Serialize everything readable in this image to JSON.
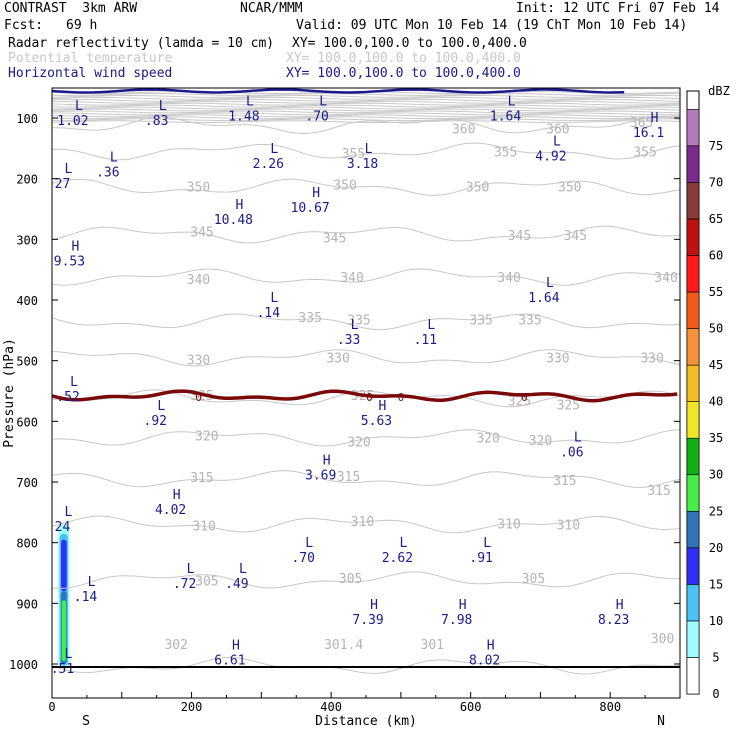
{
  "header": {
    "model": "CONTRAST  3km ARW",
    "source": "NCAR/MMM",
    "init": "Init: 12 UTC Fri 07 Feb 14",
    "fcst_label": "Fcst:",
    "fcst_value": "69 h",
    "valid": "Valid: 09 UTC Mon 10 Feb 14 (19 ChT Mon 10 Feb 14)",
    "fields": [
      {
        "name": "Radar reflectivity (lamda = 10 cm)",
        "xy": "XY= 100.0,100.0 to 100.0,400.0",
        "color": "#000000"
      },
      {
        "name": "Potential temperature",
        "xy": "XY= 100.0,100.0 to 100.0,400.0",
        "color": "#c8c8c8"
      },
      {
        "name": "Horizontal wind speed",
        "xy": "XY= 100.0,100.0 to 100.0,400.0",
        "color": "#1a1a8c"
      }
    ]
  },
  "chart_data": {
    "type": "cross-section",
    "xlabel": "Distance (km)",
    "ylabel": "Pressure (hPa)",
    "xlim": [
      0,
      900
    ],
    "ylim": [
      1010,
      50
    ],
    "xticks": [
      0,
      200,
      400,
      600,
      800
    ],
    "yticks": [
      100,
      200,
      300,
      400,
      500,
      600,
      700,
      800,
      900,
      1000
    ],
    "endpoint_left": "S",
    "endpoint_right": "N",
    "theta_contours": [
      {
        "value": 300,
        "p": 1003
      },
      {
        "value": 305,
        "p": 862
      },
      {
        "value": 310,
        "p": 770
      },
      {
        "value": 315,
        "p": 695
      },
      {
        "value": 320,
        "p": 627
      },
      {
        "value": 325,
        "p": 562
      },
      {
        "value": 330,
        "p": 495
      },
      {
        "value": 335,
        "p": 435
      },
      {
        "value": 340,
        "p": 362
      },
      {
        "value": 345,
        "p": 292
      },
      {
        "value": 350,
        "p": 214
      },
      {
        "value": 355,
        "p": 155
      },
      {
        "value": 360,
        "p": 112
      }
    ],
    "theta_labels": [
      {
        "text": "360",
        "x": 590,
        "p": 117
      },
      {
        "text": "360",
        "x": 725,
        "p": 117
      },
      {
        "text": "365",
        "x": 845,
        "p": 107
      },
      {
        "text": "355",
        "x": 432,
        "p": 158
      },
      {
        "text": "355",
        "x": 650,
        "p": 155
      },
      {
        "text": "355",
        "x": 850,
        "p": 155
      },
      {
        "text": "350",
        "x": 210,
        "p": 213
      },
      {
        "text": "350",
        "x": 420,
        "p": 210
      },
      {
        "text": "350",
        "x": 610,
        "p": 213
      },
      {
        "text": "350",
        "x": 742,
        "p": 213
      },
      {
        "text": "345",
        "x": 215,
        "p": 287
      },
      {
        "text": "345",
        "x": 405,
        "p": 297
      },
      {
        "text": "345",
        "x": 670,
        "p": 293
      },
      {
        "text": "345",
        "x": 750,
        "p": 293
      },
      {
        "text": "340",
        "x": 210,
        "p": 365
      },
      {
        "text": "340",
        "x": 430,
        "p": 362
      },
      {
        "text": "340",
        "x": 655,
        "p": 362
      },
      {
        "text": "340",
        "x": 880,
        "p": 362
      },
      {
        "text": "335",
        "x": 370,
        "p": 428
      },
      {
        "text": "335",
        "x": 440,
        "p": 432
      },
      {
        "text": "335",
        "x": 615,
        "p": 432
      },
      {
        "text": "335",
        "x": 685,
        "p": 432
      },
      {
        "text": "330",
        "x": 210,
        "p": 498
      },
      {
        "text": "330",
        "x": 410,
        "p": 495
      },
      {
        "text": "330",
        "x": 725,
        "p": 495
      },
      {
        "text": "330",
        "x": 860,
        "p": 495
      },
      {
        "text": "325",
        "x": 215,
        "p": 557
      },
      {
        "text": "325",
        "x": 445,
        "p": 557
      },
      {
        "text": "325",
        "x": 670,
        "p": 566
      },
      {
        "text": "325",
        "x": 740,
        "p": 572
      },
      {
        "text": "320",
        "x": 222,
        "p": 623
      },
      {
        "text": "320",
        "x": 440,
        "p": 633
      },
      {
        "text": "320",
        "x": 625,
        "p": 627
      },
      {
        "text": "320",
        "x": 700,
        "p": 631
      },
      {
        "text": "315",
        "x": 215,
        "p": 692
      },
      {
        "text": "315",
        "x": 425,
        "p": 690
      },
      {
        "text": "315",
        "x": 735,
        "p": 697
      },
      {
        "text": "315",
        "x": 870,
        "p": 713
      },
      {
        "text": "310",
        "x": 218,
        "p": 772
      },
      {
        "text": "310",
        "x": 445,
        "p": 764
      },
      {
        "text": "310",
        "x": 655,
        "p": 768
      },
      {
        "text": "310",
        "x": 740,
        "p": 770
      },
      {
        "text": "305",
        "x": 222,
        "p": 862
      },
      {
        "text": "305",
        "x": 428,
        "p": 858
      },
      {
        "text": "305",
        "x": 690,
        "p": 858
      },
      {
        "text": "302",
        "x": 178,
        "p": 967
      },
      {
        "text": "301.4",
        "x": 418,
        "p": 967
      },
      {
        "text": "301",
        "x": 545,
        "p": 967
      },
      {
        "text": "300",
        "x": 875,
        "p": 957
      }
    ],
    "zero_line": {
      "label": "0",
      "p": 558,
      "label_x": [
        210,
        455,
        500,
        677
      ]
    },
    "wind_extrema": [
      {
        "type": "L",
        "value": "1.02",
        "x": 30,
        "p": 93
      },
      {
        "type": "L",
        "value": ".83",
        "x": 150,
        "p": 93
      },
      {
        "type": "L",
        "value": "1.48",
        "x": 275,
        "p": 86
      },
      {
        "type": "L",
        "value": ".70",
        "x": 380,
        "p": 86
      },
      {
        "type": "L",
        "value": "1.64",
        "x": 650,
        "p": 86
      },
      {
        "type": "H",
        "value": "16.1",
        "x": 855,
        "p": 113
      },
      {
        "type": "L",
        "value": ".36",
        "x": 80,
        "p": 178
      },
      {
        "type": "L",
        "value": "2.26",
        "x": 310,
        "p": 164
      },
      {
        "type": "L",
        "value": "3.18",
        "x": 445,
        "p": 164
      },
      {
        "type": "L",
        "value": "4.92",
        "x": 715,
        "p": 152
      },
      {
        "type": "L",
        "value": "27",
        "x": 15,
        "p": 197
      },
      {
        "type": "H",
        "value": "10.67",
        "x": 370,
        "p": 237
      },
      {
        "type": "H",
        "value": "10.48",
        "x": 260,
        "p": 257
      },
      {
        "type": "H",
        "value": "9.53",
        "x": 25,
        "p": 325
      },
      {
        "type": "L",
        "value": "1.64",
        "x": 705,
        "p": 385
      },
      {
        "type": "L",
        "value": ".14",
        "x": 310,
        "p": 410
      },
      {
        "type": "L",
        "value": ".33",
        "x": 425,
        "p": 454
      },
      {
        "type": "L",
        "value": ".11",
        "x": 535,
        "p": 454
      },
      {
        "type": "L",
        "value": ".52",
        "x": 23,
        "p": 548
      },
      {
        "type": "L",
        "value": ".92",
        "x": 148,
        "p": 588
      },
      {
        "type": "H",
        "value": "5.63",
        "x": 465,
        "p": 588
      },
      {
        "type": "L",
        "value": ".06",
        "x": 745,
        "p": 640
      },
      {
        "type": "H",
        "value": "3.69",
        "x": 385,
        "p": 678
      },
      {
        "type": "H",
        "value": "4.02",
        "x": 170,
        "p": 735
      },
      {
        "type": "L",
        "value": "24",
        "x": 15,
        "p": 763
      },
      {
        "type": "L",
        "value": ".70",
        "x": 360,
        "p": 814
      },
      {
        "type": "L",
        "value": "2.62",
        "x": 495,
        "p": 814
      },
      {
        "type": "L",
        "value": ".91",
        "x": 615,
        "p": 814
      },
      {
        "type": "L",
        "value": ".72",
        "x": 190,
        "p": 857
      },
      {
        "type": "L",
        "value": ".49",
        "x": 265,
        "p": 857
      },
      {
        "type": "L",
        "value": ".14",
        "x": 48,
        "p": 878
      },
      {
        "type": "H",
        "value": "7.39",
        "x": 453,
        "p": 916
      },
      {
        "type": "H",
        "value": "7.98",
        "x": 580,
        "p": 916
      },
      {
        "type": "H",
        "value": "8.23",
        "x": 805,
        "p": 916
      },
      {
        "type": "H",
        "value": "6.61",
        "x": 255,
        "p": 983
      },
      {
        "type": "H",
        "value": "8.02",
        "x": 620,
        "p": 983
      },
      {
        "type": "L",
        "value": ".51",
        "x": 15,
        "p": 997
      }
    ],
    "colorbar": {
      "unit": "dBZ",
      "levels": [
        0,
        5,
        10,
        15,
        20,
        25,
        30,
        35,
        40,
        45,
        50,
        55,
        60,
        65,
        70,
        75
      ],
      "colors": [
        "#ffffff",
        "#9ffcfc",
        "#4cc1f5",
        "#2f2ff5",
        "#2f75b8",
        "#44ee44",
        "#12b012",
        "#f0e626",
        "#f4bc22",
        "#f5923a",
        "#f25a18",
        "#ff1a1a",
        "#c01010",
        "#8b3a3a",
        "#7d2a8e",
        "#b07ab8"
      ]
    },
    "reflectivity_cells": [
      {
        "x0": 9,
        "x1": 25,
        "p0": 770,
        "p1": 1005,
        "dbz": 5
      },
      {
        "x0": 11,
        "x1": 23,
        "p0": 785,
        "p1": 1003,
        "dbz": 10
      },
      {
        "x0": 13,
        "x1": 21,
        "p0": 795,
        "p1": 880,
        "dbz": 15
      },
      {
        "x0": 13,
        "x1": 21,
        "p0": 880,
        "p1": 1000,
        "dbz": 20
      },
      {
        "x0": 14,
        "x1": 20,
        "p0": 895,
        "p1": 995,
        "dbz": 25
      }
    ]
  }
}
